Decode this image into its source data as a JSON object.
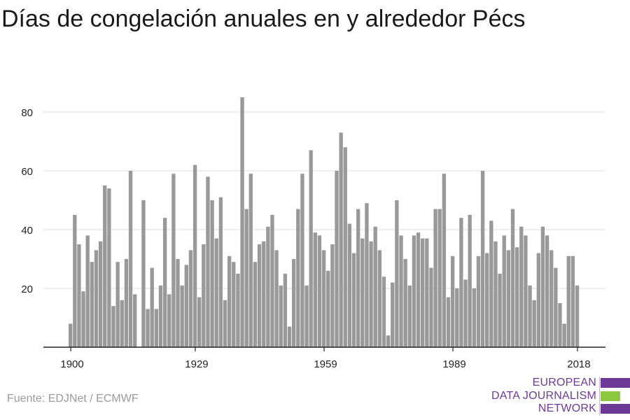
{
  "title": "Días de congelación anuales en y alrededor Pécs",
  "source": "Fuente: EDJNet / ECMWF",
  "logo": {
    "lines": [
      "EUROPEAN",
      "DATA JOURNALISM",
      "NETWORK"
    ],
    "colors": {
      "purple": "#6c3a96",
      "green": "#8dc63f"
    }
  },
  "colors": {
    "bar": "#999999",
    "grid": "#dcdcdc",
    "axis": "#222222",
    "text": "#222222"
  },
  "chart_data": {
    "type": "bar",
    "title": "Días de congelación anuales en y alrededor Pécs",
    "xlabel": "",
    "ylabel": "",
    "x_ticks": [
      1900,
      1929,
      1959,
      1989,
      2018
    ],
    "y_ticks": [
      20,
      40,
      60,
      80
    ],
    "ylim": [
      0,
      88
    ],
    "grid": true,
    "x": [
      1900,
      1901,
      1902,
      1903,
      1904,
      1905,
      1906,
      1907,
      1908,
      1909,
      1910,
      1911,
      1912,
      1913,
      1914,
      1915,
      1916,
      1917,
      1918,
      1919,
      1920,
      1921,
      1922,
      1923,
      1924,
      1925,
      1926,
      1927,
      1928,
      1929,
      1930,
      1931,
      1932,
      1933,
      1934,
      1935,
      1936,
      1937,
      1938,
      1939,
      1940,
      1941,
      1942,
      1943,
      1944,
      1945,
      1946,
      1947,
      1948,
      1949,
      1950,
      1951,
      1952,
      1953,
      1954,
      1955,
      1956,
      1957,
      1958,
      1959,
      1960,
      1961,
      1962,
      1963,
      1964,
      1965,
      1966,
      1967,
      1968,
      1969,
      1970,
      1971,
      1972,
      1973,
      1974,
      1975,
      1976,
      1977,
      1978,
      1979,
      1980,
      1981,
      1982,
      1983,
      1984,
      1985,
      1986,
      1987,
      1988,
      1989,
      1990,
      1991,
      1992,
      1993,
      1994,
      1995,
      1996,
      1997,
      1998,
      1999,
      2000,
      2001,
      2002,
      2003,
      2004,
      2005,
      2006,
      2007,
      2008,
      2009,
      2010,
      2011,
      2012,
      2013,
      2014,
      2015,
      2016,
      2017,
      2018
    ],
    "values": [
      8,
      45,
      35,
      19,
      38,
      29,
      33,
      36,
      55,
      54,
      14,
      29,
      16,
      30,
      60,
      18,
      0,
      50,
      13,
      27,
      13,
      21,
      44,
      18,
      59,
      30,
      21,
      28,
      33,
      62,
      17,
      35,
      58,
      50,
      37,
      51,
      16,
      31,
      29,
      25,
      85,
      47,
      59,
      29,
      35,
      36,
      41,
      45,
      33,
      21,
      25,
      7,
      30,
      47,
      59,
      21,
      67,
      39,
      38,
      33,
      26,
      35,
      60,
      73,
      68,
      42,
      32,
      47,
      37,
      49,
      36,
      41,
      33,
      24,
      4,
      22,
      50,
      38,
      30,
      21,
      38,
      39,
      37,
      37,
      27,
      47,
      47,
      59,
      17,
      31,
      20,
      44,
      23,
      45,
      20,
      31,
      60,
      32,
      43,
      36,
      25,
      38,
      33,
      47,
      34,
      41,
      38,
      21,
      16,
      32,
      41,
      38,
      33,
      27,
      15,
      8,
      31,
      31,
      21
    ]
  }
}
